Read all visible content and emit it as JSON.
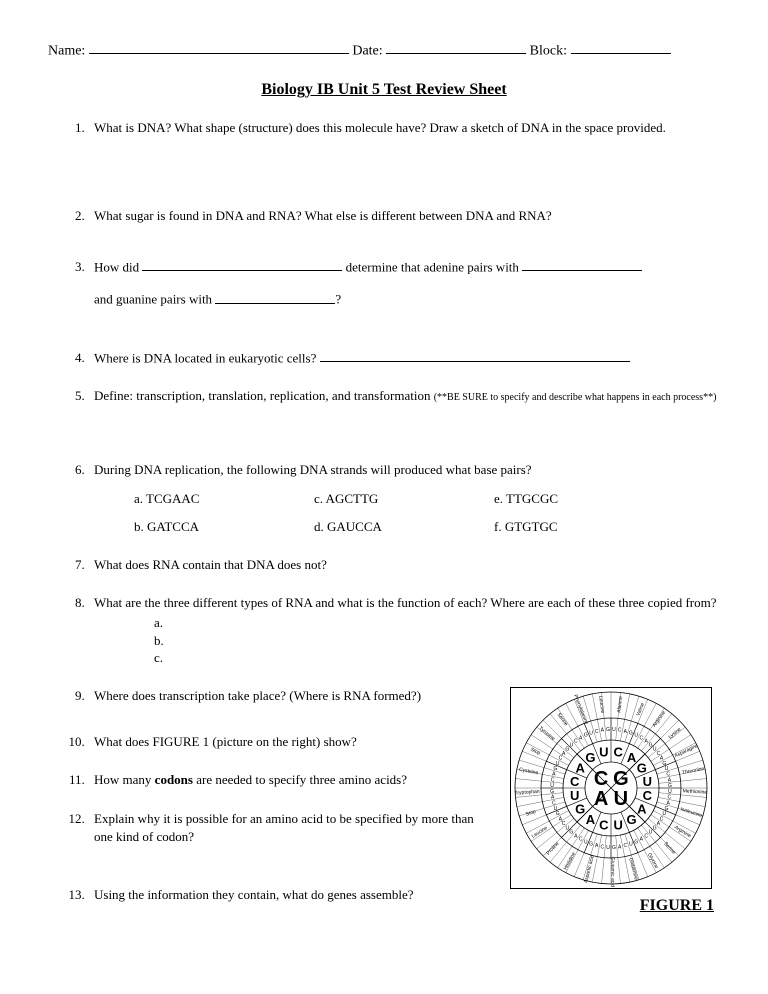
{
  "header": {
    "name_label": "Name:",
    "date_label": "Date:",
    "block_label": "Block:"
  },
  "title": "Biology IB Unit 5 Test Review Sheet",
  "q1": "What is DNA?  What shape (structure) does this molecule have?  Draw a sketch of DNA in the space provided.",
  "q2": "What sugar is found in DNA and RNA?  What else is different between DNA and RNA?",
  "q3_a": "How did ",
  "q3_b": " determine that adenine pairs with ",
  "q3_c": "and guanine pairs with ",
  "q3_d": "?",
  "q4_a": "Where is DNA located in eukaryotic cells? ",
  "q5_a": "Define: transcription, translation, replication, and transformation ",
  "q5_note": "(**BE SURE to specify and describe what happens in each process**)",
  "q6_intro": "During DNA replication, the following DNA strands will produced what base pairs?",
  "q6": {
    "a": "a.    TCGAAC",
    "b": "b.    GATCCA",
    "c": "c.    AGCTTG",
    "d": "d.    GAUCCA",
    "e": "e.    TTGCGC",
    "f": "f.    GTGTGC"
  },
  "q7": "What does RNA contain that DNA does not?",
  "q8": "What are the three different types of RNA and what is the function of each?  Where are each of these three copied from?",
  "q8_sub": {
    "a": "a.",
    "b": "b.",
    "c": "c."
  },
  "q9": "Where does transcription take place?  (Where is RNA formed?)",
  "q10": "What does FIGURE 1 (picture on the right) show?",
  "q11_a": "How many ",
  "q11_b": "codons",
  "q11_c": " are needed to specify three amino acids?",
  "q12": "Explain why it is possible for an amino acid to be specified by more than one kind of codon?",
  "q13": "Using the information they contain, what do genes assemble?",
  "figure": {
    "label": "FIGURE 1",
    "center_letters": [
      "G",
      "U",
      "A",
      "C"
    ],
    "ring2": [
      "C",
      "A",
      "G",
      "U",
      "C",
      "A",
      "G",
      "U",
      "C",
      "A",
      "G",
      "U",
      "C",
      "A",
      "G",
      "U"
    ],
    "amino_acids": [
      "Alanine",
      "Valine",
      "Arginine",
      "Lysine",
      "Asparagine",
      "Threonine",
      "Methionine",
      "Isoleucine",
      "Arginine",
      "Serine",
      "Glycine",
      "Glutamine",
      "Glutamic acid",
      "Aspartic acid",
      "Histidine",
      "Proline",
      "Leucine",
      "Stop",
      "Tryptophan",
      "Cysteine",
      "Stop",
      "Tyrosine",
      "Serine",
      "Phenylalanine",
      "Leucine"
    ],
    "colors": {
      "stroke": "#000000",
      "bg": "#ffffff",
      "text": "#000000"
    }
  }
}
